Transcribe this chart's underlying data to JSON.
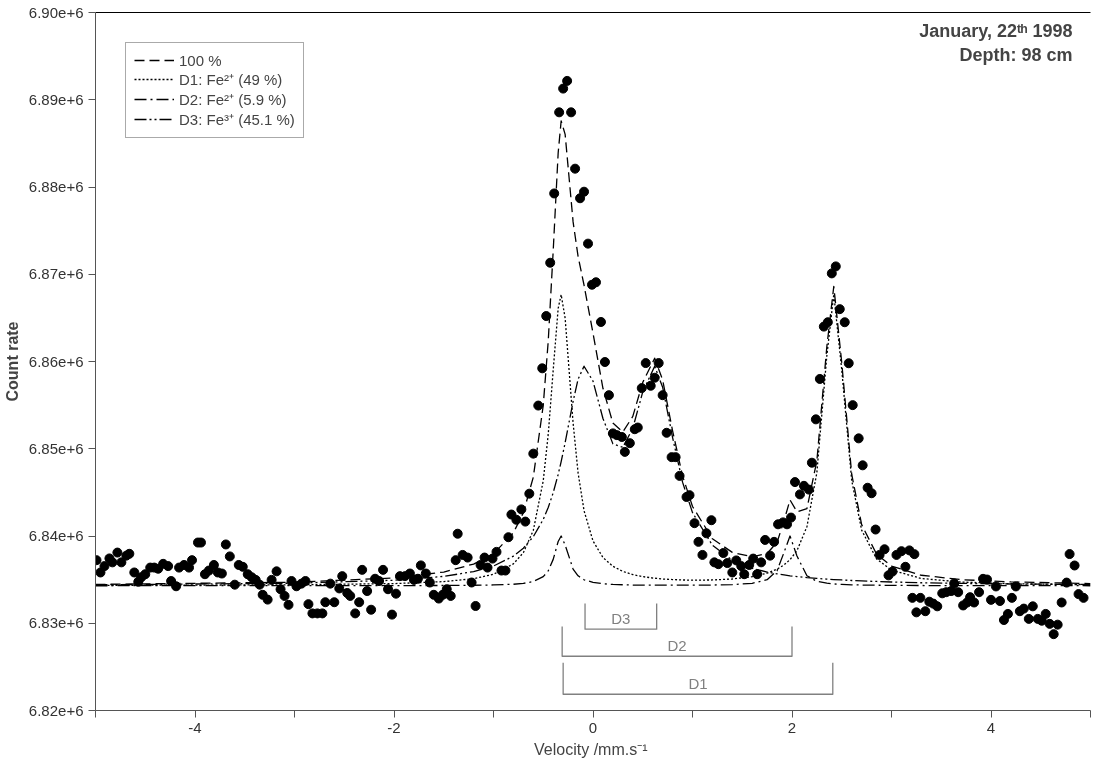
{
  "chart_data": {
    "type": "scatter",
    "xlabel": "Velocity  /mm.s⁻¹",
    "ylabel": "Count rate",
    "xlim": [
      -5,
      5
    ],
    "ylim": [
      6820000,
      6900000
    ],
    "xticks": [
      {
        "value": -5,
        "label": null
      },
      -4,
      {
        "value": -3,
        "label": null
      },
      -2,
      {
        "value": -1,
        "label": null
      },
      0,
      {
        "value": 1,
        "label": null
      },
      2,
      {
        "value": 3,
        "label": null
      },
      4,
      {
        "value": 5,
        "label": null
      }
    ],
    "yticks": [
      {
        "value": 6820000,
        "label": "6.82e+6"
      },
      {
        "value": 6830000,
        "label": "6.83e+6"
      },
      {
        "value": 6840000,
        "label": "6.84e+6"
      },
      {
        "value": 6850000,
        "label": "6.85e+6"
      },
      {
        "value": 6860000,
        "label": "6.86e+6"
      },
      {
        "value": 6870000,
        "label": "6.87e+6"
      },
      {
        "value": 6880000,
        "label": "6.88e+6"
      },
      {
        "value": 6890000,
        "label": "6.89e+6"
      },
      {
        "value": 6900000,
        "label": "6.90e+6"
      }
    ],
    "grid": false,
    "legend": "top left",
    "annotations": [
      "January, 22ᵗʰ 1998",
      "Depth: 98 cm"
    ],
    "series": [
      {
        "marker": "circle",
        "color": "#000000",
        "x": [
          -4.99,
          -4.95,
          -4.91,
          -4.86,
          -4.83,
          -4.78,
          -4.74,
          -4.69,
          -4.66,
          -4.61,
          -4.57,
          -4.54,
          -4.5,
          -4.45,
          -4.41,
          -4.37,
          -4.32,
          -4.27,
          -4.24,
          -4.19,
          -4.16,
          -4.11,
          -4.06,
          -4.03,
          -3.97,
          -3.94,
          -3.9,
          -3.86,
          -3.81,
          -3.77,
          -3.73,
          -3.69,
          -3.65,
          -3.6,
          -3.56,
          -3.52,
          -3.47,
          -3.43,
          -3.39,
          -3.35,
          -3.32,
          -3.27,
          -3.23,
          -3.18,
          -3.14,
          -3.1,
          -3.06,
          -3.03,
          -2.98,
          -2.93,
          -2.89,
          -2.86,
          -2.82,
          -2.77,
          -2.72,
          -2.69,
          -2.64,
          -2.6,
          -2.55,
          -2.52,
          -2.47,
          -2.44,
          -2.39,
          -2.35,
          -2.32,
          -2.27,
          -2.23,
          -2.19,
          -2.15,
          -2.11,
          -2.06,
          -2.02,
          -1.98,
          -1.94,
          -1.89,
          -1.84,
          -1.8,
          -1.76,
          -1.73,
          -1.68,
          -1.64,
          -1.6,
          -1.55,
          -1.51,
          -1.47,
          -1.43,
          -1.38,
          -1.36,
          -1.31,
          -1.26,
          -1.22,
          -1.18,
          -1.13,
          -1.09,
          -1.06,
          -1.01,
          -0.97,
          -0.92,
          -0.88,
          -0.85,
          -0.82,
          -0.77,
          -0.72,
          -0.68,
          -0.64,
          -0.6,
          -0.55,
          -0.51,
          -0.47,
          -0.43,
          -0.39,
          -0.34,
          -0.3,
          -0.26,
          -0.22,
          -0.18,
          -0.13,
          -0.09,
          -0.05,
          -0.01,
          0.03,
          0.08,
          0.12,
          0.16,
          0.2,
          0.24,
          0.29,
          0.32,
          0.37,
          0.42,
          0.45,
          0.49,
          0.53,
          0.58,
          0.62,
          0.66,
          0.7,
          0.74,
          0.79,
          0.83,
          0.87,
          0.94,
          0.97,
          1.02,
          1.06,
          1.1,
          1.14,
          1.19,
          1.22,
          1.26,
          1.31,
          1.35,
          1.4,
          1.44,
          1.49,
          1.52,
          1.57,
          1.61,
          1.65,
          1.69,
          1.73,
          1.78,
          1.82,
          1.86,
          1.91,
          1.95,
          1.99,
          2.03,
          2.08,
          2.12,
          2.17,
          2.2,
          2.24,
          2.28,
          2.32,
          2.36,
          2.4,
          2.44,
          2.48,
          2.53,
          2.57,
          2.61,
          2.67,
          2.71,
          2.76,
          2.8,
          2.84,
          2.88,
          2.93,
          2.97,
          3.01,
          3.05,
          3.1,
          3.14,
          3.18,
          3.23,
          3.21,
          3.25,
          3.29,
          3.34,
          3.38,
          3.42,
          3.46,
          3.51,
          3.55,
          3.6,
          3.63,
          3.67,
          3.72,
          3.76,
          3.79,
          3.83,
          3.88,
          3.92,
          3.96,
          4.0,
          4.05,
          4.09,
          4.13,
          4.17,
          4.21,
          4.25,
          4.29,
          4.33,
          4.38,
          4.42,
          4.47,
          4.51,
          4.55,
          4.59,
          4.63,
          4.67,
          4.71,
          4.76,
          4.79,
          4.84,
          4.88,
          4.93
        ],
        "values": [
          6837230,
          6835820,
          6836550,
          6837430,
          6836980,
          6838100,
          6836980,
          6837750,
          6837960,
          6835820,
          6834750,
          6835270,
          6835620,
          6836380,
          6836380,
          6836250,
          6836810,
          6836550,
          6834840,
          6834240,
          6836380,
          6836680,
          6836380,
          6837230,
          6839250,
          6839250,
          6835620,
          6836040,
          6836680,
          6835820,
          6835700,
          6839030,
          6837660,
          6834420,
          6836680,
          6836470,
          6835620,
          6835270,
          6834970,
          6834420,
          6833260,
          6832710,
          6834970,
          6835950,
          6833900,
          6833130,
          6832110,
          6834840,
          6834240,
          6834540,
          6834840,
          6832190,
          6831130,
          6831130,
          6831130,
          6832410,
          6834540,
          6832410,
          6833990,
          6835400,
          6833470,
          6833130,
          6831130,
          6832410,
          6836120,
          6833690,
          6831550,
          6835100,
          6834840,
          6836120,
          6833900,
          6830990,
          6833390,
          6835400,
          6835400,
          6835700,
          6834970,
          6835100,
          6836630,
          6835700,
          6834670,
          6833260,
          6832830,
          6833260,
          6833900,
          6833130,
          6837230,
          6840260,
          6837830,
          6837530,
          6834670,
          6831980,
          6836680,
          6837530,
          6836380,
          6837410,
          6838180,
          6836040,
          6836040,
          6839860,
          6842460,
          6841860,
          6843050,
          6841650,
          6844850,
          6849440,
          6854950,
          6859220,
          6865210,
          6871320,
          6879260,
          6888560,
          6891280,
          6892160,
          6888560,
          6882100,
          6878710,
          6879460,
          6873510,
          6868800,
          6869080,
          6864530,
          6859940,
          6856140,
          6851760,
          6851560,
          6851350,
          6849640,
          6850640,
          6852240,
          6852430,
          6856950,
          6859820,
          6857220,
          6858140,
          6859820,
          6856140,
          6851830,
          6849040,
          6849040,
          6846890,
          6844470,
          6844680,
          6841470,
          6839330,
          6837830,
          6840310,
          6841810,
          6836980,
          6836770,
          6838050,
          6836900,
          6835820,
          6837200,
          6836550,
          6835620,
          6836680,
          6837410,
          6835620,
          6836980,
          6839550,
          6837750,
          6839330,
          6841340,
          6841560,
          6841340,
          6842110,
          6846180,
          6844770,
          6845750,
          6845320,
          6848400,
          6853370,
          6858000,
          6864000,
          6864500,
          6870100,
          6870900,
          6866000,
          6864500,
          6859800,
          6855000,
          6851190,
          6848100,
          6845530,
          6844900,
          6840740,
          6837830,
          6838480,
          6835490,
          6835920,
          6837830,
          6838260,
          6836470,
          6838350,
          6837920,
          6832910,
          6831250,
          6832910,
          6831380,
          6832470,
          6832250,
          6831940,
          6833430,
          6833560,
          6833690,
          6834560,
          6833560,
          6832040,
          6832380,
          6832990,
          6832380,
          6833560,
          6835090,
          6835010,
          6832680,
          6834220,
          6832550,
          6830370,
          6831070,
          6832910,
          6834220,
          6831380,
          6831680,
          6830500,
          6831940,
          6830500,
          6830290,
          6831070,
          6829930,
          6828750,
          6829840,
          6832380,
          6834660,
          6837930,
          6836620,
          6833340,
          6832910
        ]
      },
      {
        "type": "line",
        "name": "100 %",
        "color": "#000000",
        "line_style": "dashed",
        "x": [
          -5,
          -3,
          -2,
          -1.5,
          -1.2,
          -1,
          -0.8,
          -0.7,
          -0.6,
          -0.5,
          -0.45,
          -0.4,
          -0.35,
          -0.32,
          -0.28,
          -0.2,
          -0.15,
          -0.09,
          0,
          0.1,
          0.2,
          0.3,
          0.4,
          0.5,
          0.62,
          0.7,
          0.8,
          0.9,
          1,
          1.2,
          1.4,
          1.6,
          1.75,
          1.85,
          1.92,
          1.98,
          2.05,
          2.15,
          2.25,
          2.35,
          2.42,
          2.5,
          2.6,
          2.7,
          2.85,
          3,
          3.3,
          3.7,
          4.2,
          5
        ],
        "values": [
          6834450,
          6834705,
          6835190,
          6835870,
          6836785,
          6837960,
          6840370,
          6842660,
          6846740,
          6854980,
          6862320,
          6872690,
          6883930,
          6887580,
          6886030,
          6876000,
          6872050,
          6868750,
          6863260,
          6856930,
          6852940,
          6851920,
          6853710,
          6857610,
          6860380,
          6857880,
          6852050,
          6846890,
          6843380,
          6839680,
          6838120,
          6837620,
          6838000,
          6839280,
          6841750,
          6844130,
          6842770,
          6843140,
          6848630,
          6861690,
          6868620,
          6859860,
          6847080,
          6841300,
          6837920,
          6836560,
          6835500,
          6835000,
          6834740,
          6834550
        ]
      },
      {
        "type": "line",
        "name": "D1: Fe²⁺ (49 %)",
        "color": "#000000",
        "line_style": "dotted",
        "x": [
          -5,
          -3,
          -2,
          -1.5,
          -1.2,
          -1,
          -0.8,
          -0.7,
          -0.6,
          -0.5,
          -0.45,
          -0.4,
          -0.35,
          -0.32,
          -0.28,
          -0.2,
          -0.15,
          -0.09,
          0,
          0.1,
          0.2,
          0.3,
          0.4,
          0.5,
          0.62,
          0.7,
          0.8,
          0.9,
          1,
          1.2,
          1.4,
          1.6,
          1.75,
          1.85,
          1.92,
          1.98,
          2.05,
          2.15,
          2.25,
          2.35,
          2.42,
          2.5,
          2.6,
          2.7,
          2.85,
          3,
          3.3,
          3.7,
          4.2,
          5
        ],
        "values": [
          6834340,
          6834405,
          6834545,
          6834770,
          6835110,
          6835610,
          6836810,
          6838090,
          6840640,
          6846340,
          6851640,
          6859010,
          6866100,
          6867660,
          6864960,
          6852960,
          6847240,
          6842900,
          6839430,
          6837530,
          6836530,
          6835940,
          6835580,
          6835340,
          6835160,
          6835070,
          6835010,
          6834960,
          6834940,
          6834960,
          6835070,
          6835340,
          6835740,
          6836200,
          6836690,
          6837290,
          6838320,
          6841070,
          6847280,
          6860640,
          6867700,
          6859050,
          6846370,
          6840670,
          6837370,
          6836090,
          6835130,
          6834720,
          6834530,
          6834410
        ]
      },
      {
        "type": "line",
        "name": "D2: Fe²⁺ (5.9 %)",
        "color": "#000000",
        "line_style": "dashdot",
        "x": [
          -5,
          -3,
          -2,
          -1.5,
          -1.2,
          -1,
          -0.8,
          -0.7,
          -0.6,
          -0.5,
          -0.45,
          -0.4,
          -0.35,
          -0.32,
          -0.28,
          -0.2,
          -0.15,
          -0.09,
          0,
          0.1,
          0.2,
          0.3,
          0.4,
          0.5,
          0.62,
          0.7,
          0.8,
          0.9,
          1,
          1.2,
          1.4,
          1.6,
          1.75,
          1.85,
          1.92,
          1.98,
          2.05,
          2.15,
          2.25,
          2.35,
          2.42,
          2.5,
          2.6,
          2.7,
          2.85,
          3,
          3.3,
          3.7,
          4.2,
          5
        ],
        "values": [
          6834300,
          6834310,
          6834315,
          6834330,
          6834355,
          6834390,
          6834470,
          6834570,
          6834780,
          6835340,
          6836010,
          6837320,
          6839370,
          6840000,
          6838970,
          6836210,
          6835440,
          6834985,
          6834680,
          6834530,
          6834450,
          6834410,
          6834380,
          6834360,
          6834360,
          6834360,
          6834360,
          6834360,
          6834360,
          6834380,
          6834430,
          6834580,
          6834990,
          6836020,
          6838120,
          6840000,
          6837700,
          6835440,
          6834810,
          6834590,
          6834505,
          6834450,
          6834405,
          6834380,
          6834360,
          6834340,
          6834325,
          6834310,
          6834310,
          6834300
        ]
      },
      {
        "type": "line",
        "name": "D3: Fe³⁺ (45.1 %)",
        "color": "#000000",
        "line_style": "dashdotdot",
        "x": [
          -5,
          -3,
          -2,
          -1.5,
          -1.2,
          -1,
          -0.8,
          -0.7,
          -0.6,
          -0.5,
          -0.45,
          -0.4,
          -0.35,
          -0.32,
          -0.28,
          -0.2,
          -0.15,
          -0.09,
          0,
          0.1,
          0.2,
          0.3,
          0.4,
          0.5,
          0.62,
          0.7,
          0.8,
          0.9,
          1,
          1.2,
          1.4,
          1.6,
          1.75,
          1.85,
          1.92,
          1.98,
          2.05,
          2.15,
          2.25,
          2.35,
          2.42,
          2.5,
          2.6,
          2.7,
          2.85,
          3,
          3.3,
          3.7,
          4.2,
          5
        ],
        "values": [
          6834410,
          6834590,
          6834930,
          6835370,
          6835920,
          6836560,
          6837690,
          6838600,
          6839920,
          6841900,
          6843270,
          6844960,
          6847060,
          6848520,
          6850700,
          6855430,
          6857970,
          6859460,
          6857750,
          6853470,
          6850560,
          6850170,
          6852350,
          6856510,
          6859460,
          6857050,
          6851280,
          6846170,
          6842680,
          6838940,
          6837220,
          6836300,
          6835870,
          6835660,
          6835540,
          6835440,
          6835350,
          6835230,
          6835140,
          6835060,
          6835010,
          6834960,
          6834900,
          6834850,
          6834790,
          6834730,
          6834640,
          6834570,
          6834500,
          6834440
        ]
      },
      {
        "type": "line",
        "name": "D3",
        "color": "#808080",
        "line_style": "solid",
        "x": [
          -0.08,
          -0.08,
          0.64,
          0.64
        ],
        "values": [
          6832250,
          6829320,
          6829320,
          6832250
        ]
      },
      {
        "type": "line",
        "name": "D2",
        "color": "#808080",
        "line_style": "solid",
        "x": [
          -0.31,
          -0.31,
          2.0,
          2.0
        ],
        "values": [
          6829640,
          6826220,
          6826220,
          6829640
        ]
      },
      {
        "type": "line",
        "name": "D1",
        "color": "#808080",
        "line_style": "solid",
        "x": [
          -0.3,
          -0.3,
          2.41,
          2.41
        ],
        "values": [
          6825470,
          6821860,
          6821860,
          6825470
        ]
      }
    ]
  }
}
